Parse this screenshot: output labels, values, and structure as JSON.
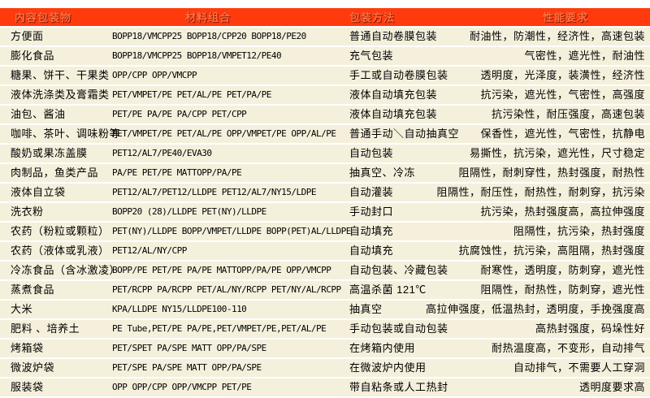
{
  "colors": {
    "header_bg": "#ff3a0d",
    "header_text": "#ff7040",
    "header_shadow": "#8f1300",
    "row_bg": "#f5f0dc",
    "text": "#000000",
    "page_bg": "#ffffff"
  },
  "table": {
    "headers": [
      "内容包装物",
      "材料组合",
      "包装方法",
      "性能要求"
    ],
    "rows": [
      {
        "item": "方便面",
        "materials": "BOPP18/VMCPP25  BOPP18/CPP20  BOPP18/PE20",
        "method": "普通自动卷膜包装",
        "performance": "耐油性，防潮性，经济性，高速包装"
      },
      {
        "item": "膨化食品",
        "materials": "BOPP18/VMCPP25  BOPP18/VMPET12/PE40",
        "method": "充气包装",
        "performance": "气密性，遮光性，耐油性"
      },
      {
        "item": "糖果、饼干、干果类",
        "materials": "OPP/CPP OPP/VMCPP",
        "method": "手工或自动卷膜包装",
        "performance": "透明度，光泽度，装潢性，经济性"
      },
      {
        "item": "液体洗涤类及膏霜类",
        "materials": "PET/VMPET/PE PET/AL/PE  PET/PA/PE",
        "method": "液体自动填充包装",
        "performance": "抗污染，遮光性，气密性，高强度"
      },
      {
        "item": "油包、酱油",
        "materials": "PET/PE  PA/PE PA/CPP PET/CPP",
        "method": "液体自动填充包装",
        "performance": "抗污染性，耐压强度，高速包装"
      },
      {
        "item": "咖啡、茶叶、调味粉等",
        "materials": "PET/VMPET/PE PET/AL/PE OPP/VMPET/PE OPP/AL/PE",
        "method": "普通手动＼自动抽真空",
        "performance": "保香性，遮光性，气密性，抗静电"
      },
      {
        "item": "酸奶或果冻盖膜",
        "materials": "PET12/AL7/PE40/EVA30",
        "method": "自动包装",
        "performance": "易撕性，抗污染，遮光性，尺寸稳定"
      },
      {
        "item": "肉制品，鱼类产品",
        "materials": "PA/PE PET/PE MATTOPP/PA/PE",
        "method": "抽真空、冷冻",
        "performance": "阻隔性，耐刺穿性，热封强度，耐热性"
      },
      {
        "item": "液体自立袋",
        "materials": "PET12/AL7/PET12/LLDPE PET12/AL7/NY15/LDPE",
        "method": "自动灌装",
        "performance": "阻隔性，耐压性，耐热性，耐刺穿，抗污染"
      },
      {
        "item": "洗衣粉",
        "materials": "BOPP20 (28)/LLDPE PET(NY)/LLDPE",
        "method": "手动封口",
        "performance": "抗污染，热封强度高，高拉伸强度"
      },
      {
        "item": "农药（粉粒或颗粒）",
        "materials": "PET(NY)/LLDPE BOPP/VMPET/LLDPE BOPP(PET)AL/LLDPE",
        "method": "自动填充",
        "performance": "阻隔性，抗污染，热封强度"
      },
      {
        "item": "农药（液体或乳液）",
        "materials": "PET12/AL/NY/CPP",
        "method": "自动填充",
        "performance": "抗腐蚀性，抗污染，高阻隔，热封强度"
      },
      {
        "item": "冷冻食品（含冰激凌）",
        "materials": "BOPP/PE PET/PE PA/PE MATTOPP/PA/PE OPP/VMCPP",
        "method": "自动包装、冷藏包装",
        "performance": "耐寒性，透明度，防刺穿，遮光性"
      },
      {
        "item": "蒸煮食品",
        "materials": "PET/RCPP PA/RCPP PET/AL/NY/RCPP PET/NY/AL/RCPP",
        "method": "高温杀菌 121℃",
        "performance": "阻隔性，耐热性，防刺穿，遮光性"
      },
      {
        "item": "大米",
        "materials": "KPA/LLDPE NY15/LLDPE100-110",
        "method": "抽真空",
        "performance": "高拉伸强度，低温热封，透明度，手挽强度高"
      },
      {
        "item": "肥料 、培养土",
        "materials": "PE Tube,PET/PE  PA/PE,PET/VMPET/PE,PET/AL/PE",
        "method": "手动包装或自动包装",
        "performance": "高热封强度，码垛性好"
      },
      {
        "item": "烤箱袋",
        "materials": "PET/SPET PA/SPE MATT OPP/PA/SPE",
        "method": "在烤箱内使用",
        "performance": "耐热温度高，不变形，自动排气"
      },
      {
        "item": "微波炉袋",
        "materials": "PET/SPE PA/SPE MATT OPP/PA/SPE",
        "method": "在微波炉内使用",
        "performance": "自动排气，不需要人工穿洞"
      },
      {
        "item": "服装袋",
        "materials": "OPP  OPP/CPP OPP/VMCPP PET/PE",
        "method": "带自粘条或人工热封",
        "performance": "透明度要求高"
      }
    ]
  }
}
